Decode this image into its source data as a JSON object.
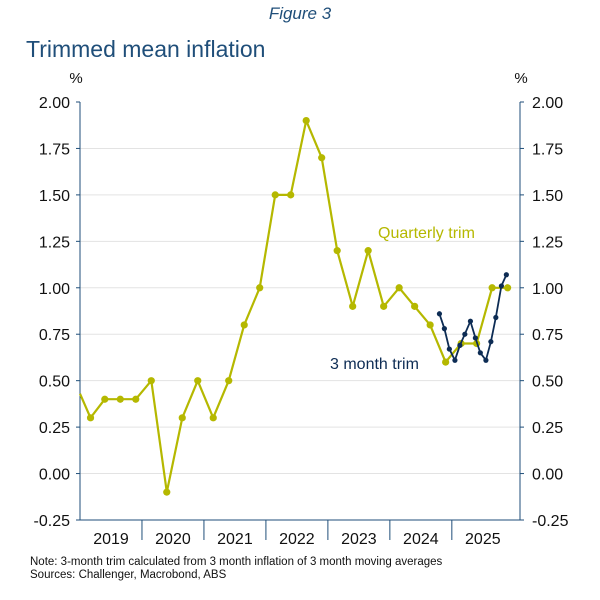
{
  "figure_label": "Figure 3",
  "note": "Note: 3-month trim calculated from 3 month inflation of 3 month moving averages",
  "sources": "Sources: Challenger, Macrobond, ABS",
  "chart_data": {
    "type": "line",
    "title": "Trimmed mean inflation",
    "ylabel_left": "%",
    "ylabel_right": "%",
    "ylim": [
      -0.25,
      2.0
    ],
    "ytick_labels": [
      "2.00",
      "1.75",
      "1.50",
      "1.25",
      "1.00",
      "0.75",
      "0.50",
      "0.25",
      "0.00",
      "-0.25"
    ],
    "ytick_values": [
      2.0,
      1.75,
      1.5,
      1.25,
      1.0,
      0.75,
      0.5,
      0.25,
      0.0,
      -0.25
    ],
    "xlim": [
      2018.6,
      2025.7
    ],
    "year_labels": [
      "2019",
      "2020",
      "2021",
      "2022",
      "2023",
      "2024",
      "2025"
    ],
    "year_centers": [
      2019.1,
      2020.1,
      2021.1,
      2022.1,
      2023.1,
      2024.1,
      2025.1
    ],
    "year_boundaries": [
      2019.6,
      2020.6,
      2021.6,
      2022.6,
      2023.6,
      2024.6
    ],
    "colors": {
      "quarterly": "#b5b800",
      "monthly": "#0d2c54",
      "axis": "#1f4e79",
      "grid": "#e3e3e3"
    },
    "series": [
      {
        "name": "Quarterly trim",
        "label": "Quarterly trim",
        "x": [
          2018.6,
          2018.77,
          2019.0,
          2019.25,
          2019.5,
          2019.75,
          2020.0,
          2020.25,
          2020.5,
          2020.75,
          2021.0,
          2021.25,
          2021.5,
          2021.75,
          2022.0,
          2022.25,
          2022.5,
          2022.75,
          2023.0,
          2023.25,
          2023.5,
          2023.75,
          2024.0,
          2024.25,
          2024.5,
          2024.75,
          2025.0,
          2025.25,
          2025.5
        ],
        "values": [
          0.43,
          0.3,
          0.4,
          0.4,
          0.4,
          0.5,
          -0.1,
          0.3,
          0.5,
          0.3,
          0.5,
          0.8,
          1.0,
          1.5,
          1.5,
          1.9,
          1.7,
          1.2,
          0.9,
          1.2,
          0.9,
          1.0,
          0.9,
          0.8,
          0.6,
          0.7,
          0.7,
          1.0,
          1.0
        ],
        "markers_from_index": 1
      },
      {
        "name": "3 month trim",
        "label": "3 month trim",
        "x": [
          2024.4,
          2024.48,
          2024.56,
          2024.65,
          2024.73,
          2024.81,
          2024.9,
          2024.98,
          2025.06,
          2025.15,
          2025.23,
          2025.31,
          2025.4,
          2025.48,
          2025.56
        ],
        "values": [
          0.86,
          0.78,
          0.67,
          0.61,
          0.69,
          0.75,
          0.82,
          0.73,
          0.65,
          0.61,
          0.71,
          0.84,
          1.01,
          1.07,
          null
        ]
      }
    ]
  }
}
